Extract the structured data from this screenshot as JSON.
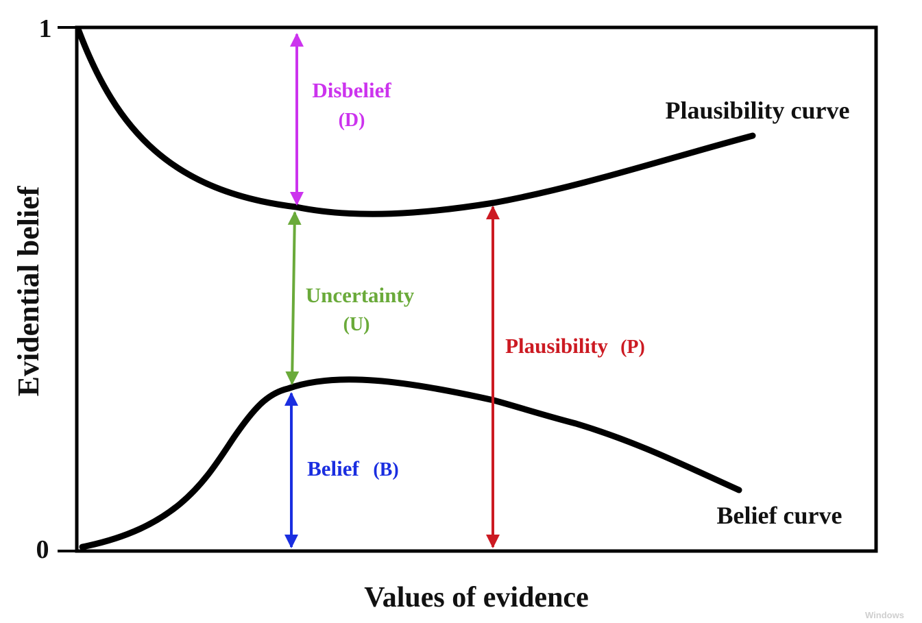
{
  "y_axis": {
    "label": "Evidential belief",
    "tick_top": "1",
    "tick_bottom": "0"
  },
  "x_axis": {
    "label": "Values of evidence"
  },
  "curves": {
    "plausibility_label": "Plausibility curve",
    "belief_label": "Belief curve"
  },
  "annotations": {
    "disbelief": {
      "line1": "Disbelief",
      "line2": "(D)",
      "color": "#cc33ee"
    },
    "uncertainty": {
      "line1": "Uncertainty",
      "line2": "(U)",
      "color": "#6aaa3a"
    },
    "belief": {
      "label": "Belief",
      "abbr": "(B)",
      "color": "#1a2ee0"
    },
    "plausibility": {
      "label": "Plausibility",
      "abbr": "(P)",
      "color": "#cc1a22"
    }
  },
  "colors": {
    "frame": "#000000",
    "curve": "#000000",
    "text": "#111111"
  },
  "watermark": "Windows"
}
